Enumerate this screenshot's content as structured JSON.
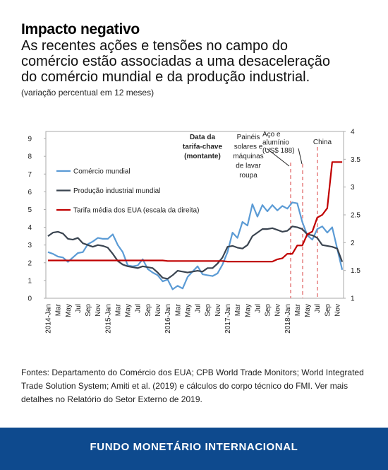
{
  "chart_data": {
    "type": "line",
    "title": "Impacto negativo",
    "subtitle": [
      "As recentes ações e tensões no campo do",
      "comércio estão associadas a uma desaceleração",
      "do comércio mundial e da produção industrial."
    ],
    "note": "(variação percentual em 12 meses)",
    "categories": [
      "2014-Jan",
      null,
      "Mar",
      null,
      "May",
      null,
      "Jul",
      null,
      "Sep",
      null,
      "Nov",
      null,
      "2015-Jan",
      null,
      "Mar",
      null,
      "May",
      null,
      "Jul",
      null,
      "Sep",
      null,
      "Nov",
      null,
      "2016-Jan",
      null,
      "Mar",
      null,
      "May",
      null,
      "Jul",
      null,
      "Sep",
      null,
      "Nov",
      null,
      "2017-Jan",
      null,
      "Mar",
      null,
      "May",
      null,
      "Jul",
      null,
      "Sep",
      null,
      "Nov",
      null,
      "2018-Jan",
      null,
      "Mar",
      null,
      "May",
      null,
      "Jul",
      null,
      "Sep",
      null,
      "Nov",
      null
    ],
    "series": [
      {
        "name": "Comércio mundial",
        "color": "#5b9bd5",
        "values": [
          2.6,
          2.5,
          2.35,
          2.3,
          2.05,
          2.3,
          2.55,
          2.6,
          3.05,
          3.2,
          3.4,
          3.35,
          3.35,
          3.6,
          3.0,
          2.6,
          1.85,
          1.8,
          1.85,
          2.2,
          1.65,
          1.45,
          1.3,
          0.95,
          1.05,
          0.5,
          0.7,
          0.55,
          1.2,
          1.5,
          1.8,
          1.35,
          1.3,
          1.25,
          1.4,
          1.9,
          2.6,
          3.7,
          3.4,
          4.3,
          4.1,
          5.3,
          4.6,
          5.25,
          4.9,
          5.25,
          4.95,
          5.2,
          5.05,
          5.4,
          5.35,
          4.3,
          3.55,
          3.3,
          3.9,
          4.05,
          3.7,
          4.0,
          2.8,
          1.6
        ]
      },
      {
        "name": "Produção industrial mundial",
        "color": "#3a4450",
        "values": [
          3.5,
          3.7,
          3.75,
          3.65,
          3.35,
          3.3,
          3.4,
          3.1,
          3.0,
          2.9,
          3.0,
          2.95,
          2.85,
          2.5,
          2.1,
          1.9,
          1.8,
          1.75,
          1.7,
          1.8,
          1.75,
          1.7,
          1.45,
          1.15,
          1.1,
          1.3,
          1.55,
          1.5,
          1.45,
          1.5,
          1.55,
          1.5,
          1.7,
          1.7,
          1.95,
          2.3,
          2.9,
          2.95,
          2.85,
          2.8,
          3.0,
          3.5,
          3.7,
          3.9,
          3.9,
          3.95,
          3.85,
          3.75,
          3.8,
          4.05,
          4.0,
          3.9,
          3.6,
          3.55,
          3.4,
          3.0,
          2.95,
          2.9,
          2.8,
          2.05
        ]
      },
      {
        "name": "Tarifa média dos EUA (escala da direita)",
        "color": "#c00000",
        "axis": "y2",
        "values": [
          1.68,
          1.68,
          1.68,
          1.68,
          1.68,
          1.68,
          1.68,
          1.68,
          1.68,
          1.68,
          1.68,
          1.68,
          1.68,
          1.68,
          1.68,
          1.68,
          1.68,
          1.68,
          1.68,
          1.68,
          1.68,
          1.68,
          1.68,
          1.68,
          1.67,
          1.67,
          1.67,
          1.67,
          1.67,
          1.67,
          1.67,
          1.67,
          1.67,
          1.67,
          1.67,
          1.67,
          1.66,
          1.66,
          1.66,
          1.66,
          1.66,
          1.66,
          1.66,
          1.66,
          1.66,
          1.66,
          1.7,
          1.72,
          1.8,
          1.8,
          1.95,
          1.95,
          2.15,
          2.2,
          2.45,
          2.5,
          2.62,
          3.45,
          3.45,
          3.45
        ]
      }
    ],
    "ylim": [
      0,
      9.4
    ],
    "yticks": [
      0,
      1,
      2,
      3,
      4,
      5,
      6,
      7,
      8,
      9
    ],
    "y2lim": [
      1,
      4
    ],
    "y2ticks": [
      1,
      1.5,
      2,
      2.5,
      3,
      3.5,
      4
    ],
    "annotations": [
      {
        "text": [
          "Data da",
          "tarifa-chave",
          "(montante)"
        ]
      },
      {
        "text": [
          "Painéis",
          "solares e",
          "máquinas",
          "de lavar",
          "roupa"
        ]
      },
      {
        "text": [
          "Aço e",
          "alumínio",
          "(US$ 188)"
        ]
      },
      {
        "text": [
          "China"
        ]
      }
    ],
    "source": [
      "Fontes: Departamento do Comércio dos EUA; CPB World Trade Monitors; World Integrated",
      "Trade Solution System; Amiti et al. (2019) e cálculos do corpo técnico do FMI. Ver mais",
      "detalhes no Relatório do Setor Externo de 2019."
    ],
    "footer": "FUNDO MONETÁRIO INTERNACIONAL"
  }
}
